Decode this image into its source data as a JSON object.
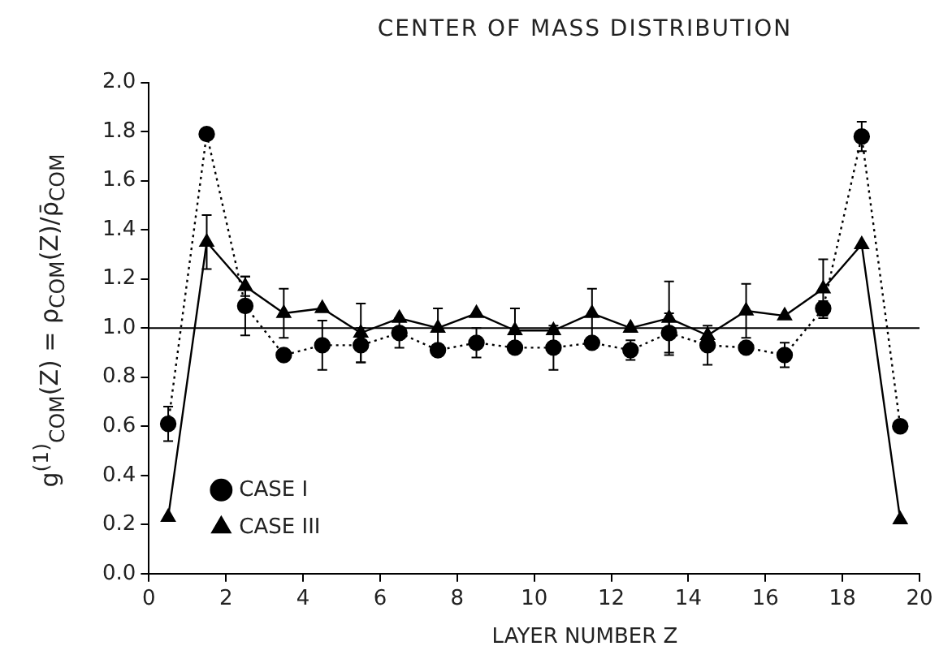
{
  "chart_data": {
    "type": "line",
    "title": "CENTER OF MASS DISTRIBUTION",
    "xlabel": "LAYER NUMBER Z",
    "ylabel": "g$^{(1)}$$_{COM}$(Z) = ρ$_{COM}$(Z)/ρ̄$_{COM}$",
    "x": [
      0.5,
      1.5,
      2.5,
      3.5,
      4.5,
      5.5,
      6.5,
      7.5,
      8.5,
      9.5,
      10.5,
      11.5,
      12.5,
      13.5,
      14.5,
      15.5,
      16.5,
      17.5,
      18.5,
      19.5
    ],
    "series": [
      {
        "name": "CASE I",
        "color": "#000000",
        "marker": "circle",
        "line_style": "dotted",
        "values": [
          0.61,
          1.79,
          1.09,
          0.89,
          0.93,
          0.93,
          0.98,
          0.91,
          0.94,
          0.92,
          0.92,
          0.94,
          0.91,
          0.98,
          0.93,
          0.92,
          0.89,
          1.08,
          1.78,
          0.6
        ],
        "errors": [
          0.07,
          null,
          0.12,
          null,
          0.1,
          0.07,
          0.06,
          null,
          0.06,
          null,
          0.09,
          null,
          0.04,
          0.08,
          0.08,
          null,
          0.05,
          0.03,
          0.06,
          null
        ]
      },
      {
        "name": "CASE III",
        "color": "#000000",
        "marker": "triangle",
        "line_style": "solid",
        "values": [
          0.23,
          1.35,
          1.17,
          1.06,
          1.08,
          0.98,
          1.04,
          1.0,
          1.06,
          0.99,
          0.99,
          1.06,
          1.0,
          1.04,
          0.97,
          1.07,
          1.05,
          1.16,
          1.34,
          0.22
        ],
        "errors": [
          null,
          0.11,
          0.04,
          0.1,
          null,
          0.12,
          null,
          0.08,
          null,
          0.09,
          null,
          0.1,
          null,
          0.15,
          null,
          0.11,
          null,
          0.12,
          null,
          null
        ]
      }
    ],
    "xlim": [
      0,
      20
    ],
    "xticks": [
      0,
      2,
      4,
      6,
      8,
      10,
      12,
      14,
      16,
      18,
      20
    ],
    "ylim": [
      0,
      2
    ],
    "yticks": [
      {
        "value": 0,
        "label": "0.0"
      },
      {
        "value": 0.2,
        "label": "0.2"
      },
      {
        "value": 0.4,
        "label": "0.4"
      },
      {
        "value": 0.6,
        "label": "0.6"
      },
      {
        "value": 0.8,
        "label": "0.8"
      },
      {
        "value": 1,
        "label": "1.0"
      },
      {
        "value": 1.2,
        "label": "1.2"
      },
      {
        "value": 1.4,
        "label": "1.4"
      },
      {
        "value": 1.6,
        "label": "1.6"
      },
      {
        "value": 1.8,
        "label": "1.8"
      },
      {
        "value": 2,
        "label": "2.0"
      }
    ],
    "ref_lines": [
      {
        "axis": "y",
        "value": 1,
        "color": "#000000",
        "line_style": "solid"
      }
    ],
    "grid": false,
    "legend": "bottom left"
  }
}
